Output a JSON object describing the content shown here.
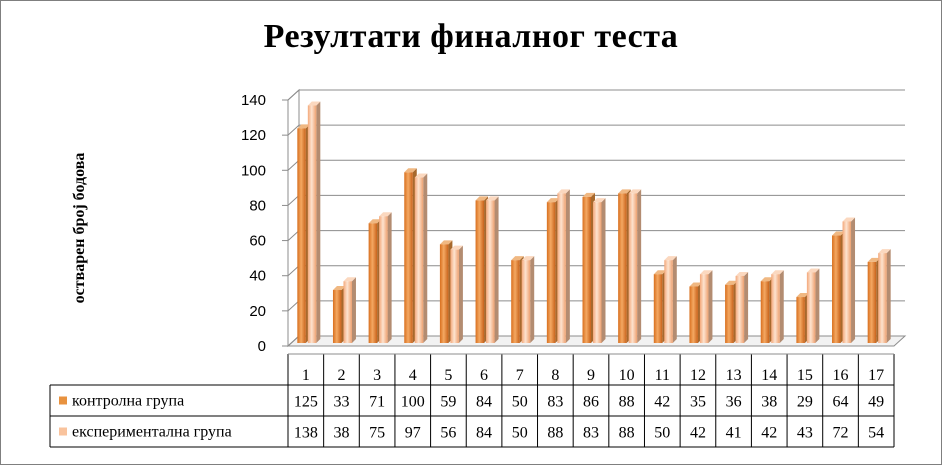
{
  "chart_data": {
    "type": "bar",
    "title": "Резултати финалног  теста",
    "ylabel": "остварен број бодова",
    "xlabel": "",
    "ylim": [
      0,
      140
    ],
    "yticks": [
      0,
      20,
      40,
      60,
      80,
      100,
      120,
      140
    ],
    "grid": true,
    "legend_placement": "data-table",
    "categories": [
      "1",
      "2",
      "3",
      "4",
      "5",
      "6",
      "7",
      "8",
      "9",
      "10",
      "11",
      "12",
      "13",
      "14",
      "15",
      "16",
      "17"
    ],
    "series": [
      {
        "name": "контролна група",
        "color": "#e8923f",
        "values": [
          125,
          33,
          71,
          100,
          59,
          84,
          50,
          83,
          86,
          88,
          42,
          35,
          36,
          38,
          29,
          64,
          49
        ]
      },
      {
        "name": "експериментална група",
        "color": "#f9c39d",
        "values": [
          138,
          38,
          75,
          97,
          56,
          84,
          50,
          88,
          83,
          88,
          50,
          42,
          41,
          42,
          43,
          72,
          54
        ]
      }
    ]
  }
}
